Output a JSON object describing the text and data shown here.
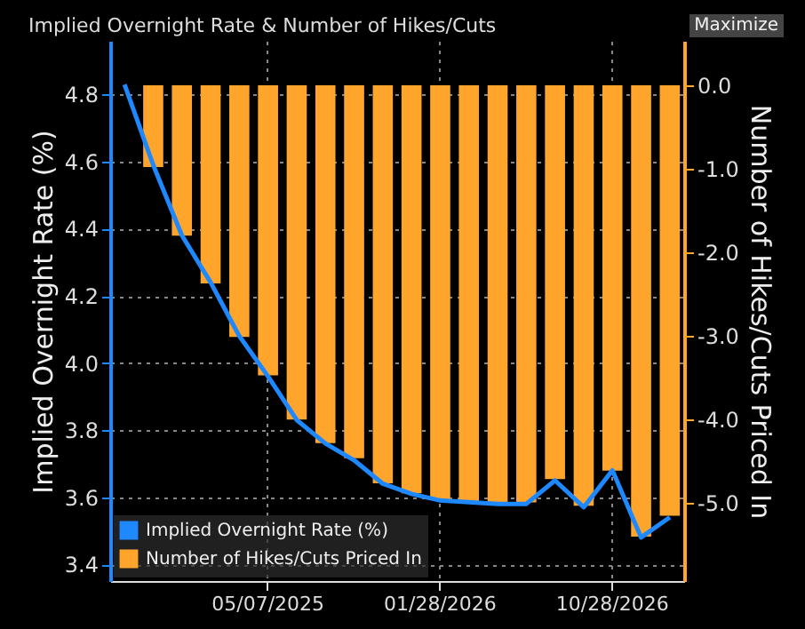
{
  "chart_data": {
    "type": "bar",
    "title": "Implied Overnight Rate & Number of Hikes/Cuts",
    "ylabel": "Implied Overnight Rate (%)",
    "y2label": "Number of Hikes/Cuts Priced In",
    "annotations": [
      "Maximize"
    ],
    "categories": [
      null,
      null,
      null,
      null,
      null,
      "05/07/2025",
      null,
      null,
      null,
      null,
      null,
      "01/28/2026",
      null,
      null,
      null,
      null,
      null,
      "10/28/2026",
      null,
      null
    ],
    "series": [
      {
        "name": "Implied Overnight Rate (%)",
        "type": "line",
        "color": "#1e88ff",
        "values": [
          4.83,
          4.59,
          4.38,
          4.24,
          4.08,
          3.96,
          3.83,
          3.76,
          3.71,
          3.64,
          3.61,
          3.59,
          3.585,
          3.58,
          3.58,
          3.65,
          3.57,
          3.68,
          3.48,
          3.54
        ]
      },
      {
        "name": "Number of Hikes/Cuts Priced In",
        "axis": "y2",
        "color": "#ffa52c",
        "values": [
          0,
          -0.98,
          -1.8,
          -2.37,
          -3.01,
          -3.47,
          -4.0,
          -4.28,
          -4.46,
          -4.76,
          -4.88,
          -4.96,
          -4.98,
          -4.99,
          -4.99,
          -4.71,
          -5.03,
          -4.61,
          -5.4,
          -5.15
        ]
      }
    ],
    "ylim": [
      3.35,
      4.96
    ],
    "yticks": [
      3.4,
      3.6,
      3.8,
      {
        "value": 4,
        "label": "4.0"
      },
      4.2,
      4.4,
      4.6,
      4.8
    ],
    "y2lim": [
      -5.93,
      0.53
    ],
    "y2ticks": [
      {
        "value": -5,
        "label": "-5.0"
      },
      {
        "value": -4,
        "label": "-4.0"
      },
      {
        "value": -3,
        "label": "-3.0"
      },
      {
        "value": -2,
        "label": "-2.0"
      },
      {
        "value": -1,
        "label": "-1.0"
      },
      {
        "value": 0,
        "label": "0.0"
      }
    ],
    "grid": true,
    "legend": "bottom left"
  }
}
